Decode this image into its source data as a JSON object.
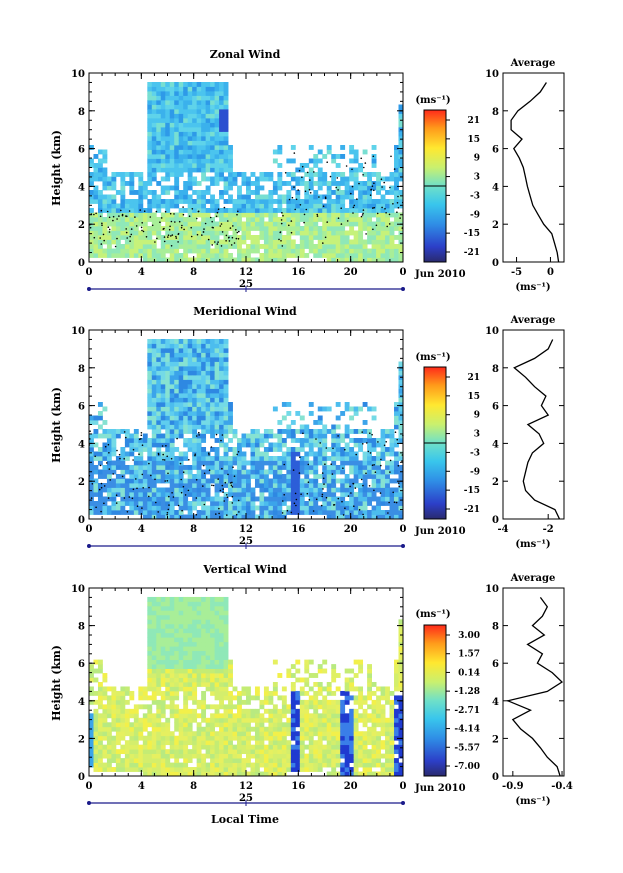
{
  "panels": [
    {
      "key": "zonal",
      "title": "Zonal Wind",
      "ylabel": "Height (km)",
      "unit": "(ms⁻¹)",
      "colorbar_ticks": [
        "21",
        "15",
        "9",
        "3",
        "-3",
        "-9",
        "-15",
        "-21"
      ],
      "average_title": "Average",
      "average_xticks": [
        "-5",
        "0"
      ],
      "average_xlabel": "(ms⁻¹)"
    },
    {
      "key": "meridional",
      "title": "Meridional Wind",
      "ylabel": "Height (km)",
      "unit": "(ms⁻¹)",
      "colorbar_ticks": [
        "21",
        "15",
        "9",
        "3",
        "-3",
        "-9",
        "-15",
        "-21"
      ],
      "average_title": "Average",
      "average_xticks": [
        "-4",
        "-2"
      ],
      "average_xlabel": "(ms⁻¹)"
    },
    {
      "key": "vertical",
      "title": "Vertical Wind",
      "ylabel": "Height (km)",
      "unit": "(ms⁻¹)",
      "colorbar_ticks": [
        "3.00",
        "1.57",
        "0.14",
        "-1.28",
        "-2.71",
        "-4.14",
        "-5.57",
        "-7.00"
      ],
      "average_title": "Average",
      "average_xticks": [
        "-0.9",
        "-0.4"
      ],
      "average_xlabel": "(ms⁻¹)"
    }
  ],
  "shared": {
    "xticks": [
      "0",
      "4",
      "8",
      "12",
      "16",
      "20",
      "0"
    ],
    "yticks": [
      "0",
      "2",
      "4",
      "6",
      "8",
      "10"
    ],
    "date_day": "25",
    "date_month": "Jun 2010",
    "xlabel": "Local Time"
  },
  "chart_data": [
    {
      "type": "heatmap",
      "title": "Zonal Wind",
      "xlabel": "",
      "ylabel": "Height (km)",
      "xlim_hours": [
        0,
        24
      ],
      "ylim": [
        0,
        10
      ],
      "colorbar_range": [
        -21,
        21
      ],
      "colorbar_unit": "ms^-1",
      "zero_contour": true,
      "avg_profile": {
        "xlim": [
          -7,
          2
        ],
        "height": [
          0,
          0.5,
          1,
          1.5,
          2,
          2.5,
          3,
          3.5,
          4,
          4.5,
          5,
          5.5,
          6,
          6.5,
          7,
          7.5,
          8,
          8.5,
          9,
          9.5
        ],
        "value": [
          1.2,
          1.0,
          0.6,
          0.2,
          -1.0,
          -1.8,
          -2.6,
          -3.0,
          -3.4,
          -3.7,
          -4.0,
          -4.6,
          -5.4,
          -4.2,
          -5.8,
          -5.8,
          -4.8,
          -3.0,
          -1.5,
          -0.6
        ]
      }
    },
    {
      "type": "heatmap",
      "title": "Meridional Wind",
      "xlabel": "",
      "ylabel": "Height (km)",
      "xlim_hours": [
        0,
        24
      ],
      "ylim": [
        0,
        10
      ],
      "colorbar_range": [
        -21,
        21
      ],
      "colorbar_unit": "ms^-1",
      "zero_contour": true,
      "avg_profile": {
        "xlim": [
          -4,
          -1.3
        ],
        "height": [
          0,
          0.5,
          1,
          1.5,
          2,
          2.5,
          3,
          3.5,
          4,
          4.5,
          5,
          5.5,
          6,
          6.5,
          7,
          7.5,
          8,
          8.5,
          9,
          9.5
        ],
        "value": [
          -1.5,
          -1.7,
          -2.6,
          -3.0,
          -3.1,
          -3.0,
          -2.9,
          -2.7,
          -2.2,
          -2.4,
          -2.9,
          -2.0,
          -2.3,
          -2.1,
          -2.6,
          -3.0,
          -3.5,
          -2.6,
          -2.0,
          -1.8
        ]
      }
    },
    {
      "type": "heatmap",
      "title": "Vertical Wind",
      "xlabel": "Local Time",
      "ylabel": "Height (km)",
      "xlim_hours": [
        0,
        24
      ],
      "ylim": [
        0,
        10
      ],
      "colorbar_range": [
        -7.0,
        3.0
      ],
      "colorbar_unit": "ms^-1",
      "zero_contour": false,
      "avg_profile": {
        "xlim": [
          -1.0,
          -0.38
        ],
        "height": [
          0,
          0.5,
          1,
          1.5,
          2,
          2.5,
          3,
          3.5,
          4,
          4.5,
          5,
          5.5,
          6,
          6.5,
          7,
          7.5,
          8,
          8.5,
          9,
          9.5
        ],
        "value": [
          -0.42,
          -0.45,
          -0.55,
          -0.62,
          -0.7,
          -0.82,
          -0.9,
          -0.72,
          -0.95,
          -0.55,
          -0.4,
          -0.5,
          -0.65,
          -0.6,
          -0.75,
          -0.58,
          -0.7,
          -0.6,
          -0.55,
          -0.62
        ]
      }
    }
  ]
}
